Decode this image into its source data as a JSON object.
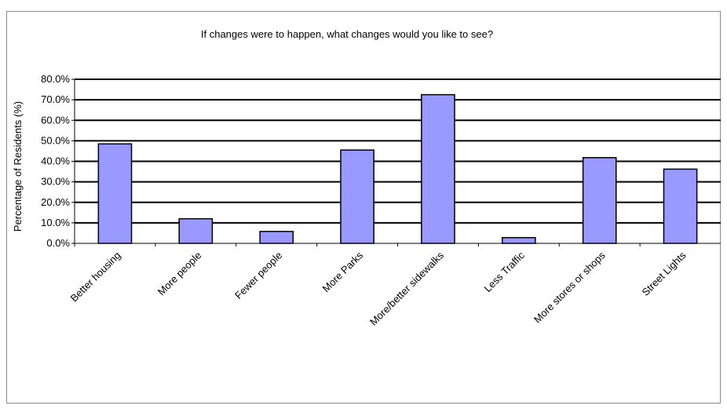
{
  "chart_data": {
    "type": "bar",
    "title": "If changes were to happen, what changes would you like to see?",
    "xlabel": "",
    "ylabel": "Percentage of Residents (%)",
    "ylim": [
      0,
      80
    ],
    "ytick_step": 10,
    "ytick_labels": [
      "0.0%",
      "10.0%",
      "20.0%",
      "30.0%",
      "40.0%",
      "50.0%",
      "60.0%",
      "70.0%",
      "80.0%"
    ],
    "categories": [
      "Better housing",
      "More people",
      "Fewer people",
      "More Parks",
      "More/better sidewalks",
      "Less Traffic",
      "More stores or shops",
      "Street Lights"
    ],
    "values": [
      48.5,
      12.0,
      5.8,
      45.5,
      72.5,
      2.8,
      41.8,
      36.2
    ],
    "grid": true,
    "legend": "none",
    "bar_color": "#9999ff",
    "bar_edge_color": "#000000",
    "grid_color": "#000000"
  }
}
